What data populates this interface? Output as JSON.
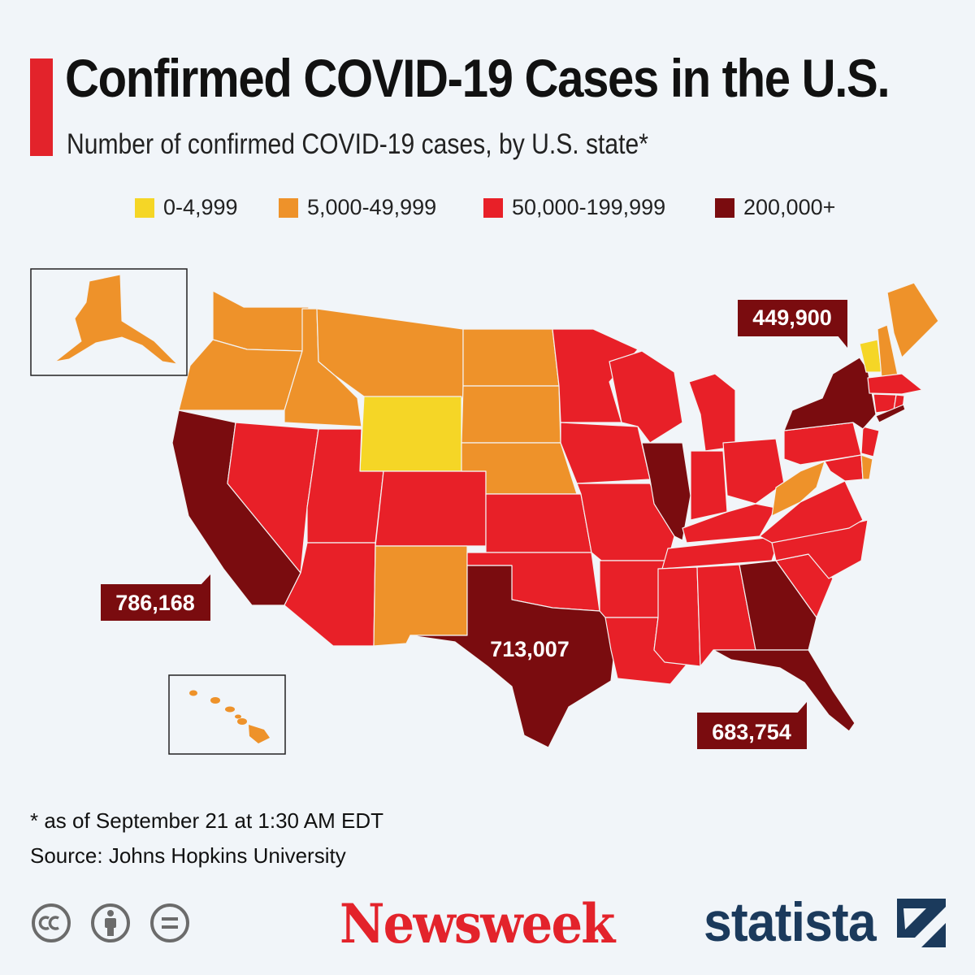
{
  "title": "Confirmed COVID-19 Cases in the U.S.",
  "subtitle": "Number of confirmed COVID-19 cases, by U.S. state*",
  "colors": {
    "accent": "#e3232b",
    "bin_0": "#f5d626",
    "bin_1": "#ee922a",
    "bin_2": "#e82028",
    "bin_3": "#7a0c0f"
  },
  "legend": [
    {
      "label": "0-4,999",
      "color": "#f5d626"
    },
    {
      "label": "5,000-49,999",
      "color": "#ee922a"
    },
    {
      "label": "50,000-199,999",
      "color": "#e82028"
    },
    {
      "label": "200,000+",
      "color": "#7a0c0f"
    }
  ],
  "callouts": {
    "new_york": "449,900",
    "california": "786,168",
    "texas": "713,007",
    "florida": "683,754"
  },
  "chart_data": {
    "type": "choropleth",
    "bins": [
      "0-4,999",
      "5,000-49,999",
      "50,000-199,999",
      "200,000+"
    ],
    "states": {
      "Wyoming": "0-4,999",
      "Vermont": "0-4,999",
      "Washington": "5,000-49,999",
      "Oregon": "5,000-49,999",
      "Idaho": "5,000-49,999",
      "Montana": "5,000-49,999",
      "North Dakota": "5,000-49,999",
      "South Dakota": "5,000-49,999",
      "Nebraska": "5,000-49,999",
      "New Mexico": "5,000-49,999",
      "West Virginia": "5,000-49,999",
      "Maine": "5,000-49,999",
      "New Hampshire": "5,000-49,999",
      "Delaware": "5,000-49,999",
      "Alaska": "5,000-49,999",
      "Hawaii": "5,000-49,999",
      "Nevada": "50,000-199,999",
      "Utah": "50,000-199,999",
      "Arizona": "50,000-199,999",
      "Colorado": "50,000-199,999",
      "Kansas": "50,000-199,999",
      "Oklahoma": "50,000-199,999",
      "Minnesota": "50,000-199,999",
      "Iowa": "50,000-199,999",
      "Missouri": "50,000-199,999",
      "Arkansas": "50,000-199,999",
      "Louisiana": "50,000-199,999",
      "Wisconsin": "50,000-199,999",
      "Michigan": "50,000-199,999",
      "Indiana": "50,000-199,999",
      "Ohio": "50,000-199,999",
      "Kentucky": "50,000-199,999",
      "Tennessee": "50,000-199,999",
      "Mississippi": "50,000-199,999",
      "Alabama": "50,000-199,999",
      "South Carolina": "50,000-199,999",
      "North Carolina": "50,000-199,999",
      "Virginia": "50,000-199,999",
      "Maryland": "50,000-199,999",
      "Pennsylvania": "50,000-199,999",
      "New Jersey": "50,000-199,999",
      "Connecticut": "50,000-199,999",
      "Rhode Island": "50,000-199,999",
      "Massachusetts": "50,000-199,999",
      "California": "200,000+",
      "Texas": "200,000+",
      "Florida": "200,000+",
      "Illinois": "200,000+",
      "Georgia": "200,000+",
      "New York": "200,000+"
    },
    "labeled_values": {
      "New York": 449900,
      "California": 786168,
      "Texas": 713007,
      "Florida": 683754
    }
  },
  "footnote": "* as of September 21 at 1:30 AM EDT",
  "source": "Source: Johns Hopkins University",
  "logos": {
    "newsweek": "Newsweek",
    "statista": "statista"
  },
  "icons": [
    "cc-icon",
    "attribution-icon",
    "no-derivatives-icon"
  ]
}
